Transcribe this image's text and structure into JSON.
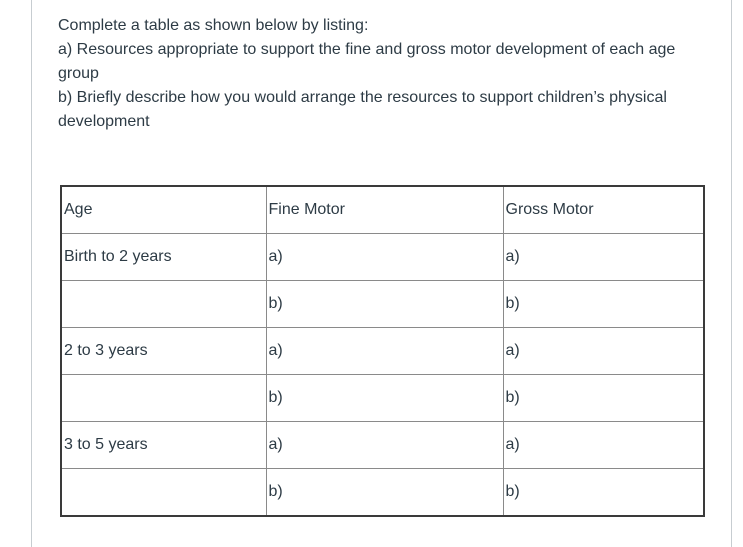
{
  "question": {
    "paragraphs": [
      "Complete a table as shown below by listing:",
      "a) Resources appropriate to support the fine and gross motor development of each age group",
      "b) Briefly describe how you would arrange the resources to support children’s physical development"
    ]
  },
  "table": {
    "headers": [
      "Age",
      "Fine Motor",
      "Gross Motor"
    ],
    "rows": [
      [
        "Birth to 2 years",
        "a)",
        "a)"
      ],
      [
        "",
        "b)",
        "b)"
      ],
      [
        "2 to 3 years",
        "a)",
        "a)"
      ],
      [
        "",
        "b)",
        "b)"
      ],
      [
        "3 to 5 years",
        "a)",
        "a)"
      ],
      [
        "",
        "b)",
        "b)"
      ]
    ]
  },
  "colors": {
    "text": "#2d3b45",
    "table_outer_border": "#3a3a3a",
    "table_inner_border": "#8a8a8a",
    "card_border": "#c7cdd1"
  }
}
